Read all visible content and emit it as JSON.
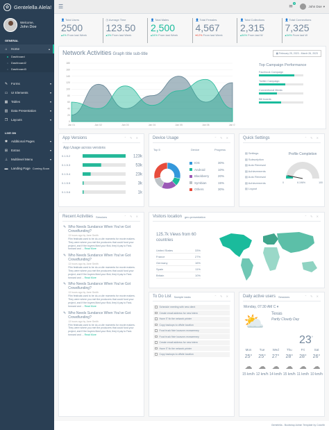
{
  "brand": {
    "name": "Gentelella Alela!"
  },
  "profile": {
    "welcome": "Welcome,",
    "name": "John Doe"
  },
  "sidebar": {
    "general_label": "GENERAL",
    "live_label": "LIVE ON",
    "items": [
      {
        "label": "Home",
        "icon": "home-icon"
      },
      {
        "label": "Forms",
        "icon": "edit-icon"
      },
      {
        "label": "UI Elements",
        "icon": "desktop-icon"
      },
      {
        "label": "Tables",
        "icon": "table-icon"
      },
      {
        "label": "Data Presentation",
        "icon": "bar-chart-icon"
      },
      {
        "label": "Layouts",
        "icon": "clone-icon"
      }
    ],
    "subitems": [
      "Dashboard",
      "Dashboard2",
      "Dashboard3"
    ],
    "live_items": [
      {
        "label": "Additional Pages",
        "icon": "bug-icon"
      },
      {
        "label": "Extras",
        "icon": "windows-icon"
      },
      {
        "label": "Multilevel Menu",
        "icon": "sitemap-icon"
      },
      {
        "label": "Landing Page",
        "icon": "laptop-icon",
        "badge": "Coming Soon"
      }
    ]
  },
  "topnav": {
    "user": "John Doe",
    "mail_badge": "6"
  },
  "stats": [
    {
      "label": "Total Users",
      "value": "2500",
      "delta": "4%",
      "delta_text": "From last Week",
      "dir": "up"
    },
    {
      "label": "Average Time",
      "value": "123.50",
      "delta": "3%",
      "delta_text": "From last Week",
      "dir": "up"
    },
    {
      "label": "Total Males",
      "value": "2,500",
      "delta": "34%",
      "delta_text": "From last Week",
      "dir": "up"
    },
    {
      "label": "Total Females",
      "value": "4,567",
      "delta": "12%",
      "delta_text": "From last Week",
      "dir": "down"
    },
    {
      "label": "Total Collections",
      "value": "2,315",
      "delta": "34%",
      "delta_text": "From last W",
      "dir": "up"
    },
    {
      "label": "Total Connections",
      "value": "7,325",
      "delta": "34%",
      "delta_text": "From last W",
      "dir": "up"
    }
  ],
  "network": {
    "title": "Network Activities",
    "subtitle": "Graph title sub-title",
    "daterange": "February 25, 2023 - March 26, 2023",
    "yticks": [
      "180",
      "160",
      "140",
      "120",
      "100",
      "80",
      "60",
      "40",
      "20",
      "0"
    ],
    "xticks": [
      "Jan 01",
      "Jan 02",
      "Jan 03",
      "Jan 04",
      "Jan 05",
      "Jan 06",
      "Jan 07"
    ],
    "campaign": {
      "title": "Top Campaign Performance",
      "items": [
        {
          "label": "Facebook Campaign",
          "value": 0.8
        },
        {
          "label": "Twitter Campaign",
          "value": 0.6
        },
        {
          "label": "Conventional Media",
          "value": 0.4
        },
        {
          "label": "Bill boards",
          "value": 0.5
        }
      ]
    }
  },
  "chart_data": [
    {
      "type": "area",
      "x": [
        "Jan 01",
        "Jan 02",
        "Jan 03",
        "Jan 04",
        "Jan 05",
        "Jan 06",
        "Jan 07"
      ],
      "ylim": [
        0,
        180
      ],
      "series": [
        {
          "values": [
            20,
            115,
            40,
            80,
            140,
            60,
            120
          ]
        },
        {
          "values": [
            60,
            40,
            110,
            50,
            95,
            130,
            40
          ]
        }
      ]
    },
    {
      "type": "bar",
      "title": "App Usage across versions",
      "categories": [
        "0.1.5.2",
        "0.1.5.3",
        "0.1.5.4",
        "0.1.5.5",
        "0.1.5.6"
      ],
      "values": [
        123,
        53,
        23,
        3,
        1
      ],
      "labels": [
        "123k",
        "53k",
        "23k",
        "3k",
        "1k"
      ]
    },
    {
      "type": "pie",
      "categories": [
        "IOS",
        "Android",
        "Blackberry",
        "Symbian",
        "Others"
      ],
      "values": [
        30,
        10,
        20,
        15,
        30
      ],
      "colors": [
        "#3498DB",
        "#1ABB9C",
        "#9B59B6",
        "#BDC3C7",
        "#E74C3C"
      ]
    }
  ],
  "app_versions": {
    "title": "App Versions",
    "subtitle": "App Usage across versions"
  },
  "device": {
    "title": "Device Usage",
    "col1": "Top 5",
    "col2": "Device",
    "col3": "Progress",
    "items": [
      {
        "name": "IOS",
        "pct": "30%"
      },
      {
        "name": "Android",
        "pct": "10%"
      },
      {
        "name": "Blackberry",
        "pct": "20%"
      },
      {
        "name": "Symbian",
        "pct": "15%"
      },
      {
        "name": "Others",
        "pct": "30%"
      }
    ]
  },
  "quick": {
    "title": "Quick Settings",
    "items": [
      "Settings",
      "Subscription",
      "Auto Renewal",
      "Achievements",
      "Auto Renewal",
      "Achievements",
      "Logout"
    ],
    "profile_title": "Profile Completion",
    "min": "0",
    "max": "100",
    "value": "6.196%"
  },
  "activities": {
    "title": "Recent Activities",
    "subtitle": "Sessions",
    "items": [
      {
        "title": "Who Needs Sundance When You've Got Crowdfunding?",
        "meta": "13 hours ago by Jane Smith",
        "body": "Film festivals used to be do-or-die moments for movie makers. They were where you met the producers that could fund your project, and if the buyers liked your flick, they'd pay to Fast-forward and ...",
        "more": "Read More"
      },
      {
        "title": "Who Needs Sundance When You've Got Crowdfunding?",
        "meta": "13 hours ago by Jane Smith",
        "body": "Film festivals used to be do-or-die moments for movie makers. They were where you met the producers that could fund your project, and if the buyers liked your flick, they'd pay to Fast-forward and ...",
        "more": "Read More"
      },
      {
        "title": "Who Needs Sundance When You've Got Crowdfunding?",
        "meta": "13 hours ago by Jane Smith",
        "body": "Film festivals used to be do-or-die moments for movie makers. They were where you met the producers that could fund your project, and if the buyers liked your flick, they'd pay to Fast-forward and ...",
        "more": "Read More"
      },
      {
        "title": "Who Needs Sundance When You've Got Crowdfunding?",
        "meta": "13 hours ago by Jane Smith",
        "body": "Film festivals used to be do-or-die moments for movie makers. They were where you met the producers that could fund your project, and if the buyers liked your flick, they'd pay to Fast-forward and ...",
        "more": "Read More"
      }
    ]
  },
  "visitors": {
    "title": "Visitors location",
    "subtitle": "geo-presentation",
    "headline": "125.7k Views from 60 countries",
    "rows": [
      {
        "c": "United States",
        "p": "33%"
      },
      {
        "c": "France",
        "p": "27%"
      },
      {
        "c": "Germany",
        "p": "16%"
      },
      {
        "c": "Spain",
        "p": "11%"
      },
      {
        "c": "Britain",
        "p": "10%"
      }
    ]
  },
  "todo": {
    "title": "To Do List",
    "subtitle": "Sample tasks",
    "items": [
      "Schedule meeting with new client",
      "Create email address for new intern",
      "Have IT fix the network printer",
      "Copy backups to offsite location",
      "Food truck fixie locavors mcsweeney",
      "Food truck fixie locavors mcsweeney",
      "Create email address for new intern",
      "Have IT fix the network printer",
      "Copy backups to offsite location"
    ]
  },
  "weather": {
    "title": "Daily active users",
    "subtitle": "Sessions",
    "day": "Monday",
    "time": "07:30 AM",
    "unit": "C",
    "city": "Texas",
    "cond": "Partly Cloudy Day",
    "temp": "23",
    "days": [
      {
        "d": "Mon",
        "t": "25°",
        "w": "15 km/h"
      },
      {
        "d": "Tue",
        "t": "25°",
        "w": "12 km/h"
      },
      {
        "d": "Wed",
        "t": "27°",
        "w": "14 km/h"
      },
      {
        "d": "Thu",
        "t": "28°",
        "w": "15 km/h"
      },
      {
        "d": "Fri",
        "t": "28°",
        "w": "11 km/h"
      },
      {
        "d": "Sat",
        "t": "26°",
        "w": "10 km/h"
      }
    ]
  },
  "footer": {
    "text": "Gentelella - Bootstrap Admin Template by Colorlib"
  }
}
